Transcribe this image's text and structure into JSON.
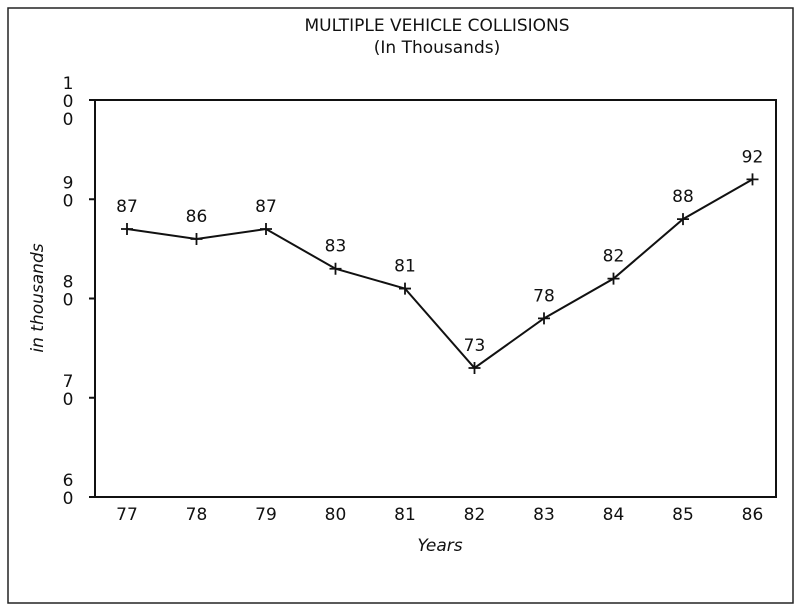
{
  "chart_data": {
    "type": "line",
    "title": "MULTIPLE VEHICLE COLLISIONS",
    "subtitle": "(In Thousands)",
    "y_label": "in thousands",
    "x_label": "Years",
    "categories": [
      "77",
      "78",
      "79",
      "80",
      "81",
      "82",
      "83",
      "84",
      "85",
      "86"
    ],
    "values": [
      87,
      86,
      87,
      83,
      81,
      73,
      78,
      82,
      88,
      92
    ],
    "color": "#111111",
    "ylim": [
      60,
      100
    ],
    "yticks": [
      60,
      70,
      80,
      90,
      100
    ],
    "grid": false
  }
}
